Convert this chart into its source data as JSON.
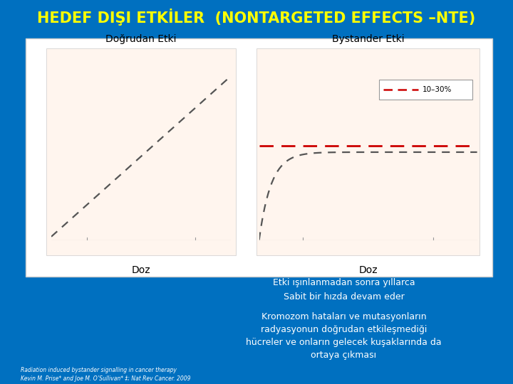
{
  "title": "HEDEF DIŞI ETKİLER  (NONTARGETED EFFECTS –NTE)",
  "title_color": "#FFFF00",
  "bg_color": "#0070C0",
  "panel_bg": "#FFF5EE",
  "outer_bg": "#FFFFFF",
  "left_label": "Doğrudan Etki",
  "right_label": "Bystander Etki",
  "doz_label": "Doz",
  "legend_label": "10–30%",
  "text1_line1": "Etki ışınlanmadan sonra yıllarca",
  "text1_line2": "Sabit bir hızda devam eder",
  "text2_line1": "Kromozom hataları ve mutasyonların",
  "text2_line2": "radyasyonun doğrudan etkileşmediği",
  "text2_line3": "hücreler ve onların gelecek kuşaklarında da",
  "text2_line4": "ortaya çıkması",
  "footnote_line1": "Radiation induced bystander signalling in cancer therapy",
  "footnote_line2": "Kevin M. Prise* and Joe M. O’Sullivan* ‡; Nat Rev Cancer. 2009",
  "text_color": "#FFFFFF",
  "footnote_color": "#FFFFFF",
  "curve_color_dark": "#555555",
  "curve_color_red": "#CC0000",
  "axis_color": "#999999",
  "legend_border": "#999999"
}
